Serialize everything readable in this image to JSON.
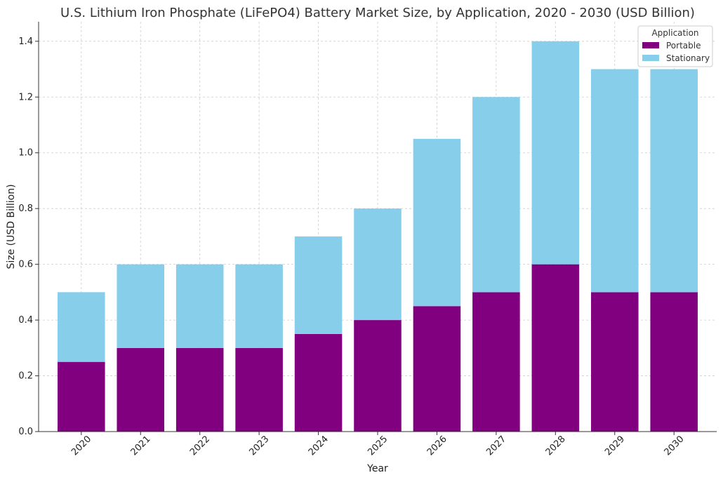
{
  "chart_data": {
    "type": "bar",
    "stacked": true,
    "title": "U.S. Lithium Iron Phosphate (LiFePO4) Battery Market Size, by Application, 2020 - 2030 (USD Billion)",
    "xlabel": "Year",
    "ylabel": "Size (USD Billion)",
    "categories": [
      "2020",
      "2021",
      "2022",
      "2023",
      "2024",
      "2025",
      "2026",
      "2027",
      "2028",
      "2029",
      "2030"
    ],
    "series": [
      {
        "name": "Portable",
        "color": "#800080",
        "values": [
          0.25,
          0.3,
          0.3,
          0.3,
          0.35,
          0.4,
          0.45,
          0.5,
          0.6,
          0.5,
          0.5
        ]
      },
      {
        "name": "Stationary",
        "color": "#87CEEB",
        "values": [
          0.25,
          0.3,
          0.3,
          0.3,
          0.35,
          0.4,
          0.6,
          0.7,
          0.8,
          0.8,
          0.8
        ]
      }
    ],
    "ylim": [
      0,
      1.47
    ],
    "yticks": [
      "0.0",
      "0.2",
      "0.4",
      "0.6",
      "0.8",
      "1.0",
      "1.2",
      "1.4"
    ],
    "grid": true,
    "legend": {
      "title": "Application",
      "placement": "top-right"
    }
  }
}
